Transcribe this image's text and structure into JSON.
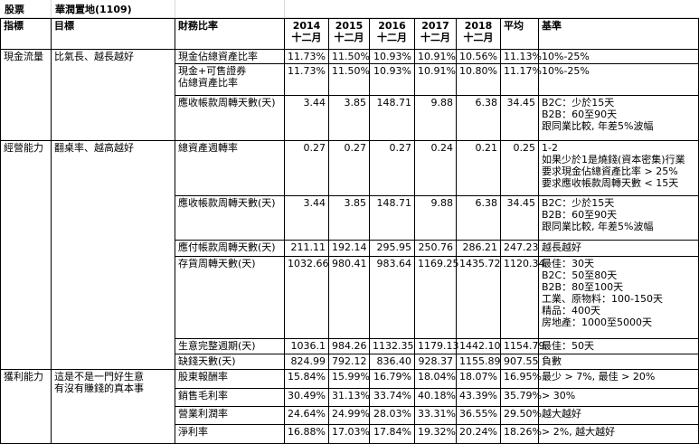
{
  "header": {
    "col_a": "股票",
    "company": "華潤置地(1109)"
  },
  "columns": {
    "indicator": "指標",
    "goal": "目標",
    "ratio": "財務比率",
    "years": [
      {
        "year": "2014",
        "month": "十二月"
      },
      {
        "year": "2015",
        "month": "十二月"
      },
      {
        "year": "2016",
        "month": "十二月"
      },
      {
        "year": "2017",
        "month": "十二月"
      },
      {
        "year": "2018",
        "month": "十二月"
      }
    ],
    "avg": "平均",
    "standard": "基準"
  },
  "groups": [
    {
      "indicator": "現金流量",
      "goal": "比氣長、越長越好"
    },
    {
      "indicator": "經營能力",
      "goal": "翻桌率、越高越好"
    },
    {
      "indicator": "獲利能力",
      "goal": "這是不是一門好生意\n有沒有賺錢的真本事"
    }
  ],
  "rows": [
    {
      "name": "現金佔總資產比率",
      "v": [
        "11.73%",
        "11.50%",
        "10.93%",
        "10.91%",
        "10.56%"
      ],
      "avg": "11.13%",
      "std": "10%-25%"
    },
    {
      "name": "現金+可售證券\n佔總資產比率",
      "v": [
        "11.73%",
        "11.50%",
        "10.93%",
        "10.91%",
        "10.80%"
      ],
      "avg": "11.17%",
      "std": "10%-25%"
    },
    {
      "name": "應收帳款周轉天數(天)",
      "v": [
        "3.44",
        "3.85",
        "148.71",
        "9.88",
        "6.38"
      ],
      "avg": "34.45",
      "std": "B2C：少於15天\nB2B：60至90天\n跟同業比較, 年差5%波幅"
    },
    {
      "name": "總資產週轉率",
      "v": [
        "0.27",
        "0.27",
        "0.27",
        "0.24",
        "0.21"
      ],
      "avg": "0.25",
      "std": "1-2\n如果少於1是燒錢(資本密集)行業\n要求現金佔總資產比率 > 25%\n要求應收帳款周轉天數 < 15天"
    },
    {
      "name": "應收帳款周轉天數(天)",
      "v": [
        "3.44",
        "3.85",
        "148.71",
        "9.88",
        "6.38"
      ],
      "avg": "34.45",
      "std": "B2C：少於15天\nB2B：60至90天\n跟同業比較, 年差5%波幅"
    },
    {
      "name": "應付帳款周轉天數(天)",
      "v": [
        "211.11",
        "192.14",
        "295.95",
        "250.76",
        "286.21"
      ],
      "avg": "247.23",
      "std": "越長越好"
    },
    {
      "name": "存貨周轉天數(天)",
      "v": [
        "1032.66",
        "980.41",
        "983.64",
        "1169.25",
        "1435.72"
      ],
      "avg": "1120.34",
      "std": "最佳：30天\nB2C：50至80天\nB2B：80至100天\n工業、原物料：100-150天\n精品：400天\n房地產：1000至5000天"
    },
    {
      "name": "生意完整週期(天)",
      "v": [
        "1036.1",
        "984.26",
        "1132.35",
        "1179.13",
        "1442.10"
      ],
      "avg": "1154.79",
      "std": "最佳：50天"
    },
    {
      "name": "缺錢天數(天)",
      "v": [
        "824.99",
        "792.12",
        "836.40",
        "928.37",
        "1155.89"
      ],
      "avg": "907.55",
      "std": "負數"
    },
    {
      "name": "股東報酬率",
      "v": [
        "15.84%",
        "15.99%",
        "16.79%",
        "18.04%",
        "18.07%"
      ],
      "avg": "16.95%",
      "std": "最少 > 7%, 最佳 > 20%"
    },
    {
      "name": "銷售毛利率",
      "v": [
        "30.49%",
        "31.13%",
        "33.74%",
        "40.18%",
        "43.39%"
      ],
      "avg": "35.79%",
      "std": "> 30%"
    },
    {
      "name": "營業利潤率",
      "v": [
        "24.64%",
        "24.99%",
        "28.03%",
        "33.31%",
        "36.55%"
      ],
      "avg": "29.50%",
      "std": "越大越好"
    },
    {
      "name": "淨利率",
      "v": [
        "16.88%",
        "17.03%",
        "17.84%",
        "19.32%",
        "20.24%"
      ],
      "avg": "18.26%",
      "std": "> 2%, 越大越好"
    }
  ]
}
